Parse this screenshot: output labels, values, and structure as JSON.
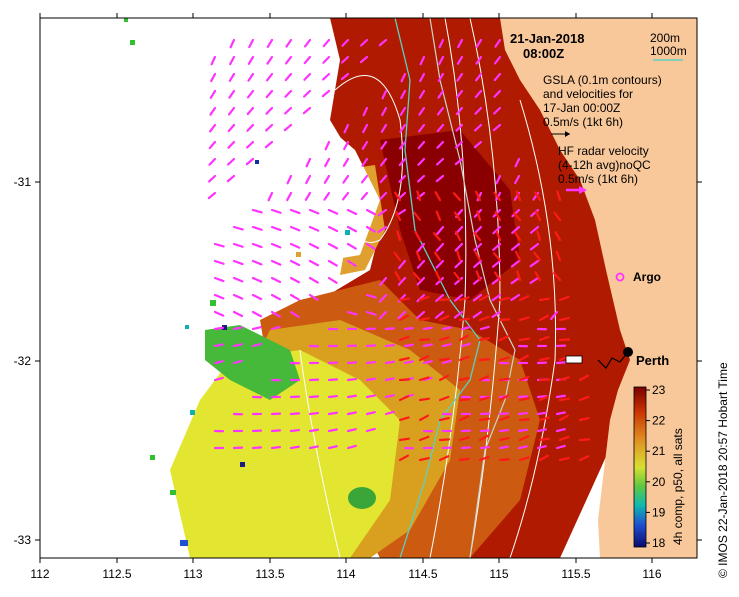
{
  "map": {
    "date_line": "21-Jan-2018",
    "time_line": "08:00Z",
    "credit": "© IMOS 22-Jan-2018 20:57 Hobart Time",
    "place_label": "Perth",
    "argo_label": "Argo",
    "x_ticks": [
      "112",
      "112.5",
      "113",
      "113.5",
      "114",
      "114.5",
      "115",
      "115.5",
      "116"
    ],
    "y_ticks": [
      "-31",
      "-32",
      "-33"
    ],
    "legend": {
      "depth_200": "200m",
      "depth_1000": "1000m",
      "gsla_line1": "GSLA (0.1m contours)",
      "gsla_line2": "and velocities for",
      "gsla_line3": "17-Jan 00:00Z",
      "gsla_scale": "0.5m/s (1kt 6h)",
      "hf_line1": "HF radar velocity",
      "hf_line2": "(4-12h avg)noQC",
      "hf_scale": "0.5m/s (1kt 6h)"
    },
    "colorbar": {
      "label": "4h comp, p50, all sats",
      "ticks": [
        "23",
        "22",
        "21",
        "20",
        "19",
        "18"
      ]
    },
    "colors": {
      "land": "#f9c89a",
      "hf_vector": "#ff33ff",
      "gsla_vector": "#ff1a1a",
      "depth_200": "#c8d4c8",
      "depth_1000": "#5fcfc0",
      "gsla_contour": "#ffffff"
    }
  }
}
